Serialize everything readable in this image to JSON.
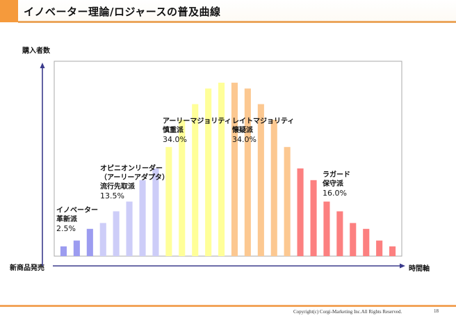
{
  "header": {
    "title": "イノベーター理論/ロジャースの普及曲線"
  },
  "chart_data": {
    "type": "bar",
    "title": "イノベーター理論/ロジャースの普及曲線",
    "ylabel": "購入者数",
    "xlabel": "時間軸",
    "x_origin_label": "新商品発売",
    "ylim": [
      0,
      100
    ],
    "grid": false,
    "values": [
      5,
      8,
      14,
      17,
      23,
      28,
      39,
      45,
      56,
      70,
      78,
      86,
      89,
      89,
      86,
      78,
      70,
      56,
      45,
      39,
      28,
      23,
      17,
      14,
      8,
      5
    ],
    "bar_groups": [
      5,
      8,
      14,
      17,
      23,
      28,
      39,
      45,
      56,
      70,
      78,
      86,
      89,
      89,
      86,
      78,
      70,
      56,
      45,
      39,
      28,
      23,
      17,
      14,
      8,
      5
    ],
    "segments": [
      {
        "name": "イノベーター",
        "subname": "革新派",
        "share": "2.5%",
        "count": 3,
        "color": "#9c9cf0"
      },
      {
        "name": "オピニオンリーダー",
        "subname2": "（アーリーアダプタ）",
        "subname": "流行先取派",
        "share": "13.5%",
        "count": 5,
        "color": "#cdcdf8"
      },
      {
        "name": "アーリーマジョリティ",
        "subname": "慎重派",
        "share": "34.0%",
        "count": 5,
        "color": "#ffff99"
      },
      {
        "name": "レイトマジョリティ",
        "subname": "懐疑派",
        "share": "34.0%",
        "count": 5,
        "color": "#fcc891"
      },
      {
        "name": "ラガード",
        "subname": "保守派",
        "share": "16.0%",
        "count": 8,
        "color": "#fc8080"
      }
    ]
  },
  "labels": {
    "innovator": {
      "name": "イノベーター",
      "sub": "革新派",
      "pct": "2.5%"
    },
    "early_adopter": {
      "name": "オピニオンリーダー",
      "name2": "（アーリーアダプタ）",
      "sub": "流行先取派",
      "pct": "13.5%"
    },
    "early_majority": {
      "name": "アーリーマジョリティ",
      "sub": "慎重派",
      "pct": "34.0%"
    },
    "late_majority": {
      "name": "レイトマジョリティ",
      "sub": "懐疑派",
      "pct": "34.0%"
    },
    "laggard": {
      "name": "ラガード",
      "sub": "保守派",
      "pct": "16.0%"
    }
  },
  "axes": {
    "y_label": "購入者数",
    "x_label": "時間軸",
    "origin_label": "新商品発売"
  },
  "colors": {
    "accent": "#f59a3c",
    "axis": "#3a3a8c"
  },
  "footer": {
    "copyright": "Copyright(c)  Corgi-Marketing  Inc.All Rights Reserved.",
    "page": "18"
  }
}
